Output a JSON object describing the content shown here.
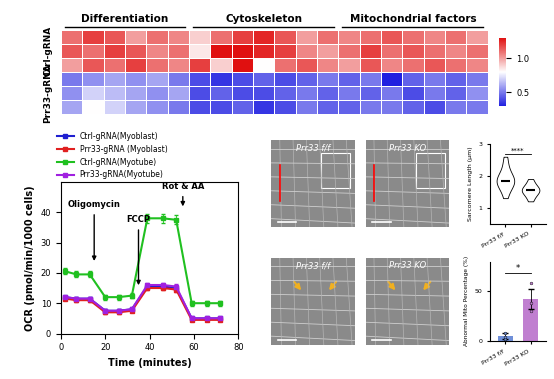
{
  "chart_data": [
    {
      "type": "heatmap",
      "tick_labels": false,
      "column_groups": [
        {
          "name": "Differentiation",
          "count": 6
        },
        {
          "name": "Cytoskeleton",
          "count": 7
        },
        {
          "name": "Mitochondrial factors",
          "count": 7
        }
      ],
      "row_groups": [
        {
          "name": "Ctrl-gRNA",
          "rows": [
            [
              1.1,
              1.2,
              1.15,
              1.0,
              1.1,
              1.05,
              0.9,
              1.1,
              1.2,
              1.25,
              1.15,
              1.0,
              1.1,
              1.05,
              1.1,
              1.15,
              1.1,
              1.05,
              1.1,
              1.0
            ],
            [
              1.15,
              1.1,
              1.2,
              1.15,
              1.05,
              1.1,
              0.85,
              1.3,
              1.3,
              1.25,
              1.2,
              1.05,
              1.0,
              1.1,
              1.2,
              1.1,
              1.15,
              1.1,
              1.05,
              1.1
            ],
            [
              1.0,
              1.15,
              1.1,
              1.2,
              1.1,
              1.05,
              1.2,
              0.9,
              1.3,
              0.8,
              1.1,
              1.15,
              1.05,
              1.0,
              1.15,
              1.05,
              1.1,
              1.15,
              1.1,
              1.05
            ]
          ]
        },
        {
          "name": "Prr33-gRNA",
          "rows": [
            [
              0.5,
              0.55,
              0.6,
              0.55,
              0.6,
              0.5,
              0.4,
              0.35,
              0.4,
              0.45,
              0.4,
              0.45,
              0.5,
              0.45,
              0.5,
              0.3,
              0.45,
              0.5,
              0.45,
              0.5
            ],
            [
              0.55,
              0.7,
              0.65,
              0.6,
              0.55,
              0.6,
              0.4,
              0.45,
              0.4,
              0.4,
              0.45,
              0.5,
              0.45,
              0.5,
              0.45,
              0.5,
              0.4,
              0.5,
              0.45,
              0.55
            ],
            [
              0.6,
              0.8,
              0.7,
              0.6,
              0.55,
              0.5,
              0.4,
              0.4,
              0.45,
              0.35,
              0.4,
              0.5,
              0.45,
              0.45,
              0.5,
              0.5,
              0.45,
              0.4,
              0.5,
              0.5
            ]
          ]
        }
      ],
      "colors": [
        "#2020e0",
        "#ffffff",
        "#e01010"
      ],
      "colorbar": {
        "range": [
          0.3,
          1.3
        ],
        "ticks": [
          {
            "value": 0.5,
            "label": "0.5"
          },
          {
            "value": 1.0,
            "label": "1.0"
          }
        ]
      }
    },
    {
      "type": "line",
      "x": [
        2,
        7,
        13,
        20,
        26,
        32,
        39,
        46,
        52,
        59,
        66,
        72
      ],
      "series": [
        {
          "name": "Ctrl-gRNA(Myoblast)",
          "color": "#1f1fd0",
          "values": [
            12,
            11.5,
            11.5,
            7.5,
            7.5,
            8,
            15.5,
            15.5,
            15,
            5,
            5,
            5
          ],
          "errors": [
            0.5,
            0.5,
            0.5,
            0.5,
            0.5,
            0.5,
            0.8,
            0.8,
            0.8,
            0.5,
            0.5,
            0.5
          ]
        },
        {
          "name": "Prr33-gRNA (Myoblast)",
          "color": "#e02020",
          "values": [
            11.5,
            11,
            11,
            7,
            7,
            7.5,
            15,
            15,
            14.5,
            4.5,
            4.5,
            4.5
          ],
          "errors": [
            0.5,
            0.5,
            0.5,
            0.5,
            0.5,
            0.5,
            0.8,
            0.8,
            0.8,
            0.5,
            0.5,
            0.5
          ]
        },
        {
          "name": "Ctrl-gRNA(Myotube)",
          "color": "#20c020",
          "values": [
            20.5,
            19.5,
            19.5,
            12,
            12,
            12.5,
            38,
            38,
            37.5,
            10,
            10,
            10
          ],
          "errors": [
            1,
            1,
            1,
            0.8,
            0.8,
            0.8,
            1.5,
            1.5,
            1.5,
            0.8,
            0.8,
            0.8
          ]
        },
        {
          "name": "Prr33-gRNA(Myotube)",
          "color": "#a020e0",
          "values": [
            12,
            11.5,
            11.5,
            7.5,
            7.5,
            8,
            16,
            16,
            15.5,
            5,
            5,
            5
          ],
          "errors": [
            0.5,
            0.5,
            0.5,
            0.5,
            0.5,
            0.5,
            0.8,
            0.8,
            0.8,
            0.5,
            0.5,
            0.5
          ]
        }
      ],
      "marker": "s",
      "xlabel": "Time (minutes)",
      "ylabel": "OCR (pmol/min/1000 cells)",
      "xlim": [
        0,
        80
      ],
      "ylim": [
        0,
        50
      ],
      "xticks": [
        0,
        20,
        40,
        60,
        80
      ],
      "yticks": [
        0,
        10,
        20,
        30,
        40
      ],
      "legend": "upper left",
      "annotations": [
        {
          "text": "Oligomycin",
          "x": 15,
          "y": 41,
          "tip_y": 23
        },
        {
          "text": "FCCP",
          "x": 35,
          "y": 36,
          "tip_y": 15
        },
        {
          "text": "Rot & AA",
          "x": 55,
          "y": 47,
          "tip_y": 41
        }
      ]
    },
    {
      "type": "violin",
      "categories": [
        "Prr33 f/f",
        "Prr33 KO"
      ],
      "samples": [
        [
          1.3,
          1.5,
          1.6,
          1.7,
          1.75,
          1.8,
          1.8,
          1.85,
          1.9,
          1.95,
          2.0,
          2.1,
          2.2,
          2.4,
          2.6
        ],
        [
          1.2,
          1.3,
          1.4,
          1.45,
          1.5,
          1.5,
          1.55,
          1.6,
          1.6,
          1.65,
          1.7,
          1.8,
          1.9
        ]
      ],
      "colors": [
        "#ffffff",
        "#ffffff"
      ],
      "ylabel": "Sarcomere Length (μm)",
      "ylim": [
        0.5,
        3
      ],
      "yticks": [
        1,
        2,
        3
      ],
      "significance": "****"
    },
    {
      "type": "bar",
      "categories": [
        "Prr33 f/f",
        "Prr33 KO"
      ],
      "values": [
        5,
        42
      ],
      "errors": [
        3,
        10
      ],
      "points": [
        [
          2,
          4,
          8
        ],
        [
          30,
          38,
          58
        ]
      ],
      "colors": [
        "#6f8fd8",
        "#c07fd0"
      ],
      "ylabel": "Abnormal Mito Percentage (%)",
      "ylim": [
        0,
        80
      ],
      "yticks": [
        0,
        50
      ],
      "significance": "*"
    }
  ],
  "images": [
    {
      "label": "Prr33 f/f"
    },
    {
      "label": "Prr33 KO"
    },
    {
      "label": "Prr33 f/f"
    },
    {
      "label": "Prr33 KO"
    }
  ]
}
